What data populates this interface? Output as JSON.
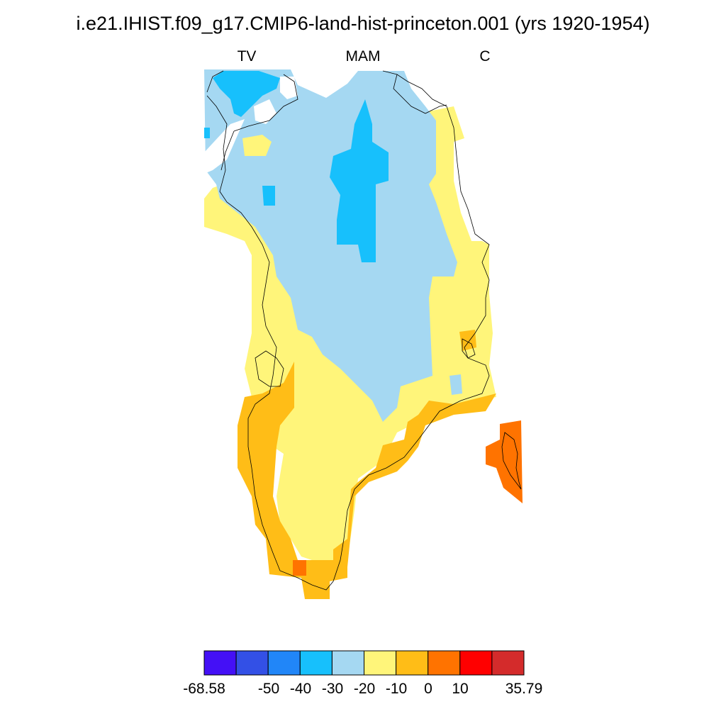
{
  "title": "i.e21.IHIST.f09_g17.CMIP6-land-hist-princeton.001 (yrs 1920-1954)",
  "subtitles": {
    "left": "TV",
    "center": "MAM",
    "right": "C"
  },
  "colorbar": {
    "colors": [
      "#4410f6",
      "#3350e6",
      "#2186f8",
      "#17c0fc",
      "#a5d8f2",
      "#fff57a",
      "#ffbd17",
      "#ff7300",
      "#ff0000",
      "#d42b2b"
    ],
    "tick_labels": [
      "-68.58",
      "-50",
      "-40",
      "-30",
      "-20",
      "-10",
      "0",
      "10",
      "35.79"
    ]
  }
}
